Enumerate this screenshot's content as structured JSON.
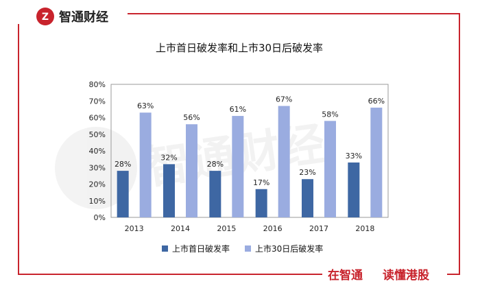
{
  "brand": {
    "name": "智通财经",
    "watermark": "智通财经",
    "slogan_left": "在智通",
    "slogan_right": "读懂港股",
    "accent": "#c8232c"
  },
  "chart_data": {
    "type": "bar",
    "title": "上市首日破发率和上市30日后破发率",
    "categories": [
      "2013",
      "2014",
      "2015",
      "2016",
      "2017",
      "2018"
    ],
    "series": [
      {
        "name": "上市首日破发率",
        "values": [
          28,
          32,
          28,
          17,
          23,
          33
        ],
        "color": "#3e67a3"
      },
      {
        "name": "上市30日后破发率",
        "values": [
          63,
          56,
          61,
          67,
          58,
          66
        ],
        "color": "#9aace0"
      }
    ],
    "ylim": [
      0,
      80
    ],
    "yticks": [
      "0%",
      "10%",
      "20%",
      "30%",
      "40%",
      "50%",
      "60%",
      "70%",
      "80%"
    ],
    "value_suffix": "%",
    "xlabel": "",
    "ylabel": "",
    "legend_position": "bottom",
    "grid": false
  }
}
